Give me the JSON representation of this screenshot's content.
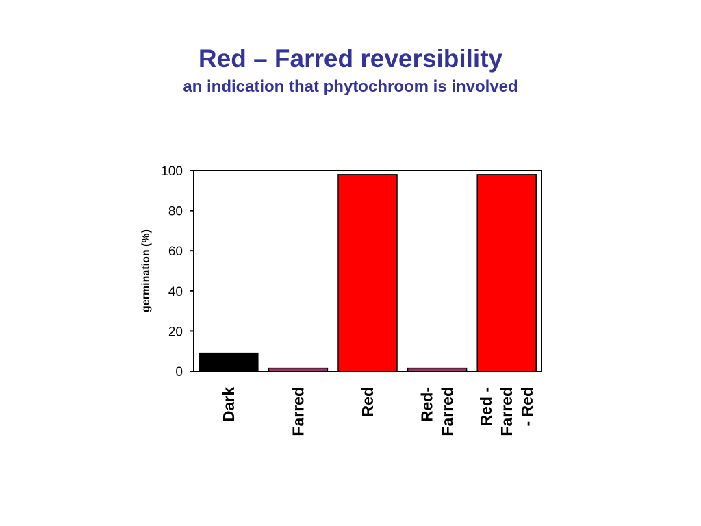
{
  "slide": {
    "title": "Red – Farred reversibility",
    "subtitle": "an indication that phytochroom is involved"
  },
  "colors": {
    "title": "#333399",
    "dark_bar": "#000000",
    "farred_bar": "#993366",
    "red_bar": "#ff0000"
  },
  "chart_data": {
    "type": "bar",
    "title": "",
    "xlabel": "",
    "ylabel": "germination (%)",
    "ylim": [
      0,
      100
    ],
    "yticks": [
      0,
      20,
      40,
      60,
      80,
      100
    ],
    "grid": false,
    "legend": "none",
    "categories": [
      {
        "lines": [
          "Dark"
        ],
        "value": 9,
        "color": "#000000"
      },
      {
        "lines": [
          "Farred"
        ],
        "value": 1.5,
        "color": "#993366"
      },
      {
        "lines": [
          "Red"
        ],
        "value": 98,
        "color": "#ff0000"
      },
      {
        "lines": [
          "Red-",
          "Farred"
        ],
        "value": 1.5,
        "color": "#993366"
      },
      {
        "lines": [
          "Red -",
          "Farred",
          "- Red"
        ],
        "value": 98,
        "color": "#ff0000"
      }
    ]
  }
}
